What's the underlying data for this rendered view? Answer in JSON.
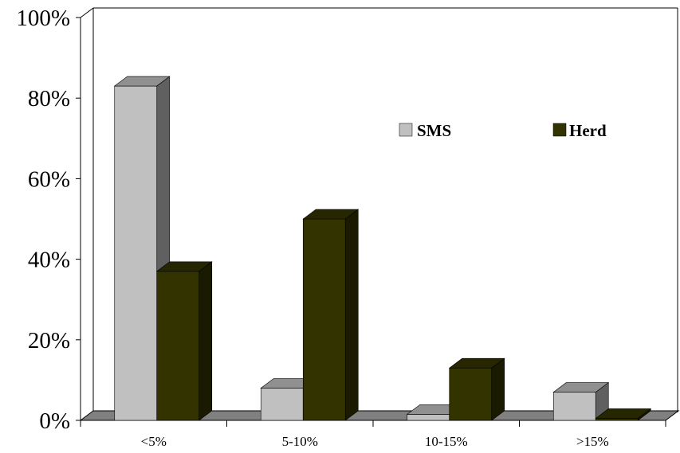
{
  "chart_data": {
    "type": "bar",
    "categories": [
      "<5%",
      "5-10%",
      "10-15%",
      ">15%"
    ],
    "series": [
      {
        "name": "SMS",
        "values": [
          83,
          8,
          1.5,
          7
        ],
        "color": "#c0c0c0"
      },
      {
        "name": "Herd",
        "values": [
          37,
          50,
          13,
          0.5
        ],
        "color": "#333300"
      }
    ],
    "y_ticks": [
      "0%",
      "20%",
      "40%",
      "60%",
      "80%",
      "100%"
    ],
    "ylim": [
      0,
      100
    ],
    "style": "3d-clustered-bar",
    "grid": false,
    "legend_position": "top-right"
  }
}
